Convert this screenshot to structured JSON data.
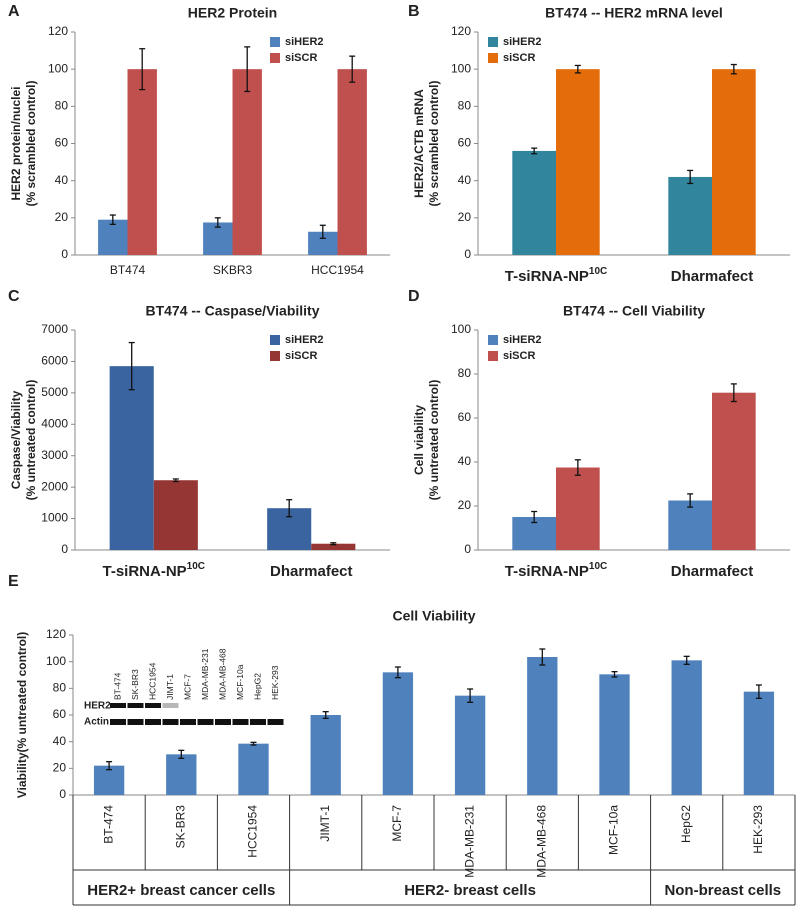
{
  "chart_data": [
    {
      "type": "bar",
      "panel": "A",
      "title": "HER2 Protein",
      "ylabel": [
        "HER2 protein/nuclei",
        "(% scrambled control)"
      ],
      "categories": [
        "BT474",
        "SKBR3",
        "HCC1954"
      ],
      "series": [
        {
          "name": "siHER2",
          "color": "#4f81bd",
          "values": [
            19,
            17.5,
            12.5
          ],
          "errors": [
            2.5,
            2.5,
            3.5
          ]
        },
        {
          "name": "siSCR",
          "color": "#c0504d",
          "values": [
            100,
            100,
            100
          ],
          "errors": [
            11,
            12,
            7
          ]
        }
      ],
      "ylim": [
        0,
        120
      ],
      "yticks": [
        0,
        20,
        40,
        60,
        80,
        100,
        120
      ],
      "legend": "upper right"
    },
    {
      "type": "bar",
      "panel": "B",
      "title": "BT474 -- HER2 mRNA level",
      "ylabel": [
        "HER2/ACTB mRNA",
        "(% scrambled control)"
      ],
      "categories": [
        "T-siRNA-NP",
        "Dharmafect"
      ],
      "category_superscripts": [
        "10C",
        null
      ],
      "series": [
        {
          "name": "siHER2",
          "color": "#31859c",
          "values": [
            56,
            42
          ],
          "errors": [
            1.5,
            3.5
          ]
        },
        {
          "name": "siSCR",
          "color": "#e46c0a",
          "values": [
            100,
            100
          ],
          "errors": [
            2,
            2.5
          ]
        }
      ],
      "ylim": [
        0,
        120
      ],
      "yticks": [
        0,
        20,
        40,
        60,
        80,
        100,
        120
      ],
      "legend": "upper left"
    },
    {
      "type": "bar",
      "panel": "C",
      "title": "BT474 -- Caspase/Viability",
      "ylabel": [
        "Caspase/Viability",
        "(% untreated control)"
      ],
      "categories": [
        "T-siRNA-NP",
        "Dharmafect"
      ],
      "category_superscripts": [
        "10C",
        null
      ],
      "series": [
        {
          "name": "siHER2",
          "color": "#3a64a0",
          "values": [
            5850,
            1330
          ],
          "errors": [
            750,
            270
          ]
        },
        {
          "name": "siSCR",
          "color": "#963634",
          "values": [
            2220,
            200
          ],
          "errors": [
            40,
            30
          ]
        }
      ],
      "ylim": [
        0,
        7000
      ],
      "yticks": [
        0,
        1000,
        2000,
        3000,
        4000,
        5000,
        6000,
        7000
      ],
      "legend": "upper right"
    },
    {
      "type": "bar",
      "panel": "D",
      "title": "BT474 -- Cell Viability",
      "ylabel": [
        "Cell viability",
        "(% untreated control)"
      ],
      "categories": [
        "T-siRNA-NP",
        "Dharmafect"
      ],
      "category_superscripts": [
        "10C",
        null
      ],
      "series": [
        {
          "name": "siHER2",
          "color": "#4f81bd",
          "values": [
            15,
            22.5
          ],
          "errors": [
            2.5,
            3
          ]
        },
        {
          "name": "siSCR",
          "color": "#c0504d",
          "values": [
            37.5,
            71.5
          ],
          "errors": [
            3.5,
            4
          ]
        }
      ],
      "ylim": [
        0,
        100
      ],
      "yticks": [
        0,
        20,
        40,
        60,
        80,
        100
      ],
      "legend": "upper left"
    },
    {
      "type": "bar",
      "panel": "E",
      "title": "Cell Viability",
      "ylabel": [
        "Viability(% untreated control)"
      ],
      "categories": [
        "BT-474",
        "SK-BR3",
        "HCC1954",
        "JIMT-1",
        "MCF-7",
        "MDA-MB-231",
        "MDA-MB-468",
        "MCF-10a",
        "HepG2",
        "HEK-293"
      ],
      "series": [
        {
          "color": "#4f81bd",
          "values": [
            22,
            30.5,
            38.5,
            60,
            92,
            74.5,
            103.5,
            90.5,
            101,
            77.5
          ],
          "errors": [
            3,
            3,
            1,
            2.5,
            4,
            5,
            6,
            2,
            3,
            5
          ]
        }
      ],
      "ylim": [
        0,
        120
      ],
      "yticks": [
        0,
        20,
        40,
        60,
        80,
        100,
        120
      ],
      "groups": [
        "HER2+ breast cancer cells",
        "HER2- breast cells",
        "Non-breast cells"
      ],
      "inset": {
        "lanes": [
          "BT-474",
          "SK-BR3",
          "HCC1954",
          "JIMT-1",
          "MCF-7",
          "MDA-MB-231",
          "MDA-MB-468",
          "MCF-10a",
          "HepG2",
          "HEK-293"
        ],
        "rows": [
          "HER2",
          "Actin"
        ]
      }
    }
  ]
}
